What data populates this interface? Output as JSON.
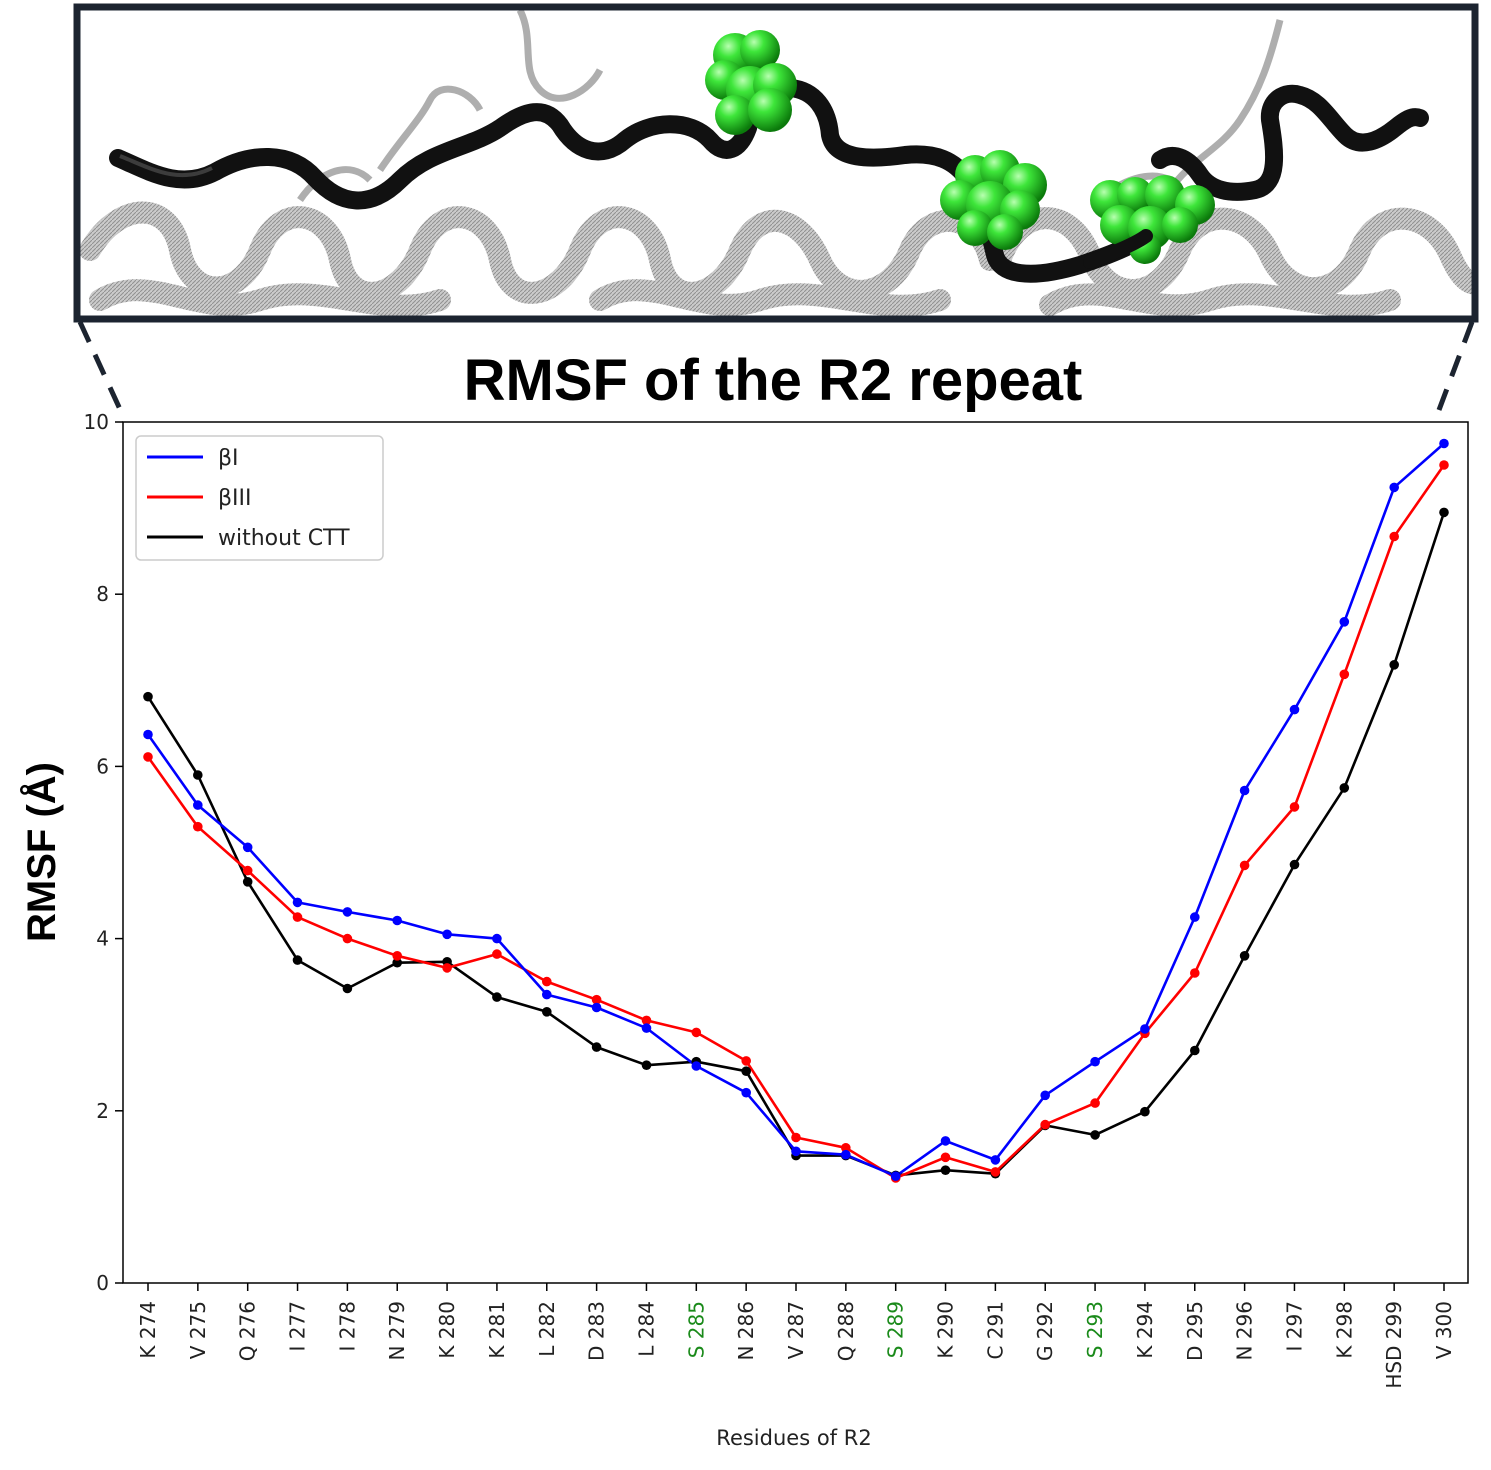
{
  "chart_data": {
    "type": "line",
    "title": "RMSF of the R2 repeat",
    "xlabel": "Residues of R2",
    "ylabel": "RMSF (Å)",
    "ylim": [
      0,
      10
    ],
    "yticks": [
      "0",
      "2",
      "4",
      "6",
      "8",
      "10"
    ],
    "legend_position": "top-left",
    "categories": [
      "K 274",
      "V 275",
      "Q 276",
      "I 277",
      "I 278",
      "N 279",
      "K 280",
      "K 281",
      "L 282",
      "D 283",
      "L 284",
      "S 285",
      "N 286",
      "V 287",
      "Q 288",
      "S 289",
      "K 290",
      "C 291",
      "G 292",
      "S 293",
      "K 294",
      "D 295",
      "N 296",
      "I 297",
      "K 298",
      "HSD 299",
      "V 300"
    ],
    "highlighted_categories": [
      "S 285",
      "S 289",
      "S 293"
    ],
    "highlight_color": "#1a8a1a",
    "series": [
      {
        "name": "βI",
        "color": "#0000ff",
        "values": [
          6.37,
          5.55,
          5.06,
          4.42,
          4.31,
          4.21,
          4.05,
          4.0,
          3.35,
          3.2,
          2.96,
          2.52,
          2.21,
          1.53,
          1.49,
          1.24,
          1.65,
          1.43,
          2.18,
          2.57,
          2.95,
          4.25,
          5.72,
          6.66,
          7.68,
          9.24,
          9.75
        ]
      },
      {
        "name": "βIII",
        "color": "#ff0000",
        "values": [
          6.11,
          5.3,
          4.79,
          4.25,
          4.0,
          3.8,
          3.66,
          3.82,
          3.5,
          3.29,
          3.05,
          2.91,
          2.58,
          1.69,
          1.57,
          1.22,
          1.46,
          1.29,
          1.84,
          2.09,
          2.9,
          3.6,
          4.85,
          5.53,
          7.07,
          8.67,
          9.5
        ]
      },
      {
        "name": "without CTT",
        "color": "#000000",
        "values": [
          6.81,
          5.9,
          4.66,
          3.75,
          3.42,
          3.72,
          3.73,
          3.32,
          3.15,
          2.74,
          2.53,
          2.57,
          2.46,
          1.48,
          1.48,
          1.25,
          1.31,
          1.27,
          1.83,
          1.72,
          1.99,
          2.7,
          3.8,
          4.86,
          5.75,
          7.18,
          8.95
        ]
      }
    ]
  },
  "header_image": {
    "description_icon": "protein-structure-illustration",
    "frame_color": "#1c2430",
    "backbone_color": "#111111",
    "marker_color": "#22cc22"
  }
}
